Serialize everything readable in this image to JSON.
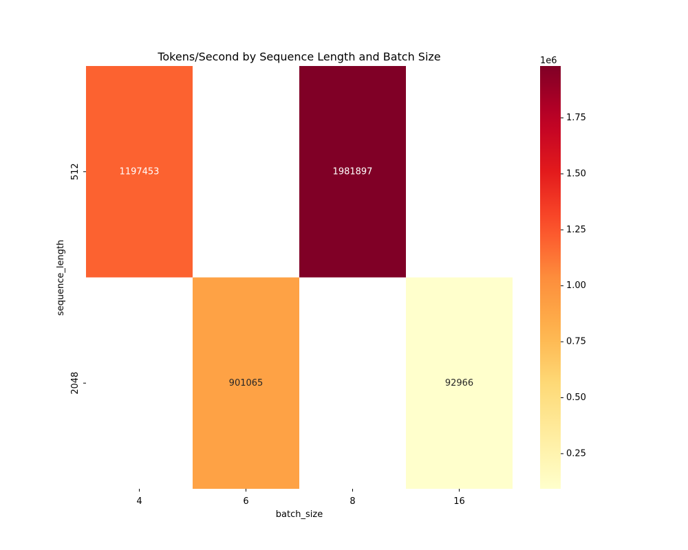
{
  "chart_data": {
    "type": "heatmap",
    "title": "Tokens/Second by Sequence Length and Batch Size",
    "xlabel": "batch_size",
    "ylabel": "sequence_length",
    "x_categories": [
      "4",
      "6",
      "8",
      "16"
    ],
    "y_categories": [
      "512",
      "2048"
    ],
    "values": [
      [
        1197453,
        null,
        1981897,
        null
      ],
      [
        null,
        901065,
        null,
        92966
      ]
    ],
    "value_labels": [
      [
        "1197453",
        "",
        "1981897",
        ""
      ],
      [
        "",
        "901065",
        "",
        "92966"
      ]
    ],
    "colormap": "YlOrRd",
    "vmin": 92966,
    "vmax": 1981897,
    "colorbar": {
      "multiplier": "1e6",
      "ticks": [
        0.25,
        0.5,
        0.75,
        1.0,
        1.25,
        1.5,
        1.75
      ],
      "tick_labels": [
        "0.25",
        "0.50",
        "0.75",
        "1.00",
        "1.25",
        "1.50",
        "1.75"
      ],
      "scale": 1000000
    }
  }
}
